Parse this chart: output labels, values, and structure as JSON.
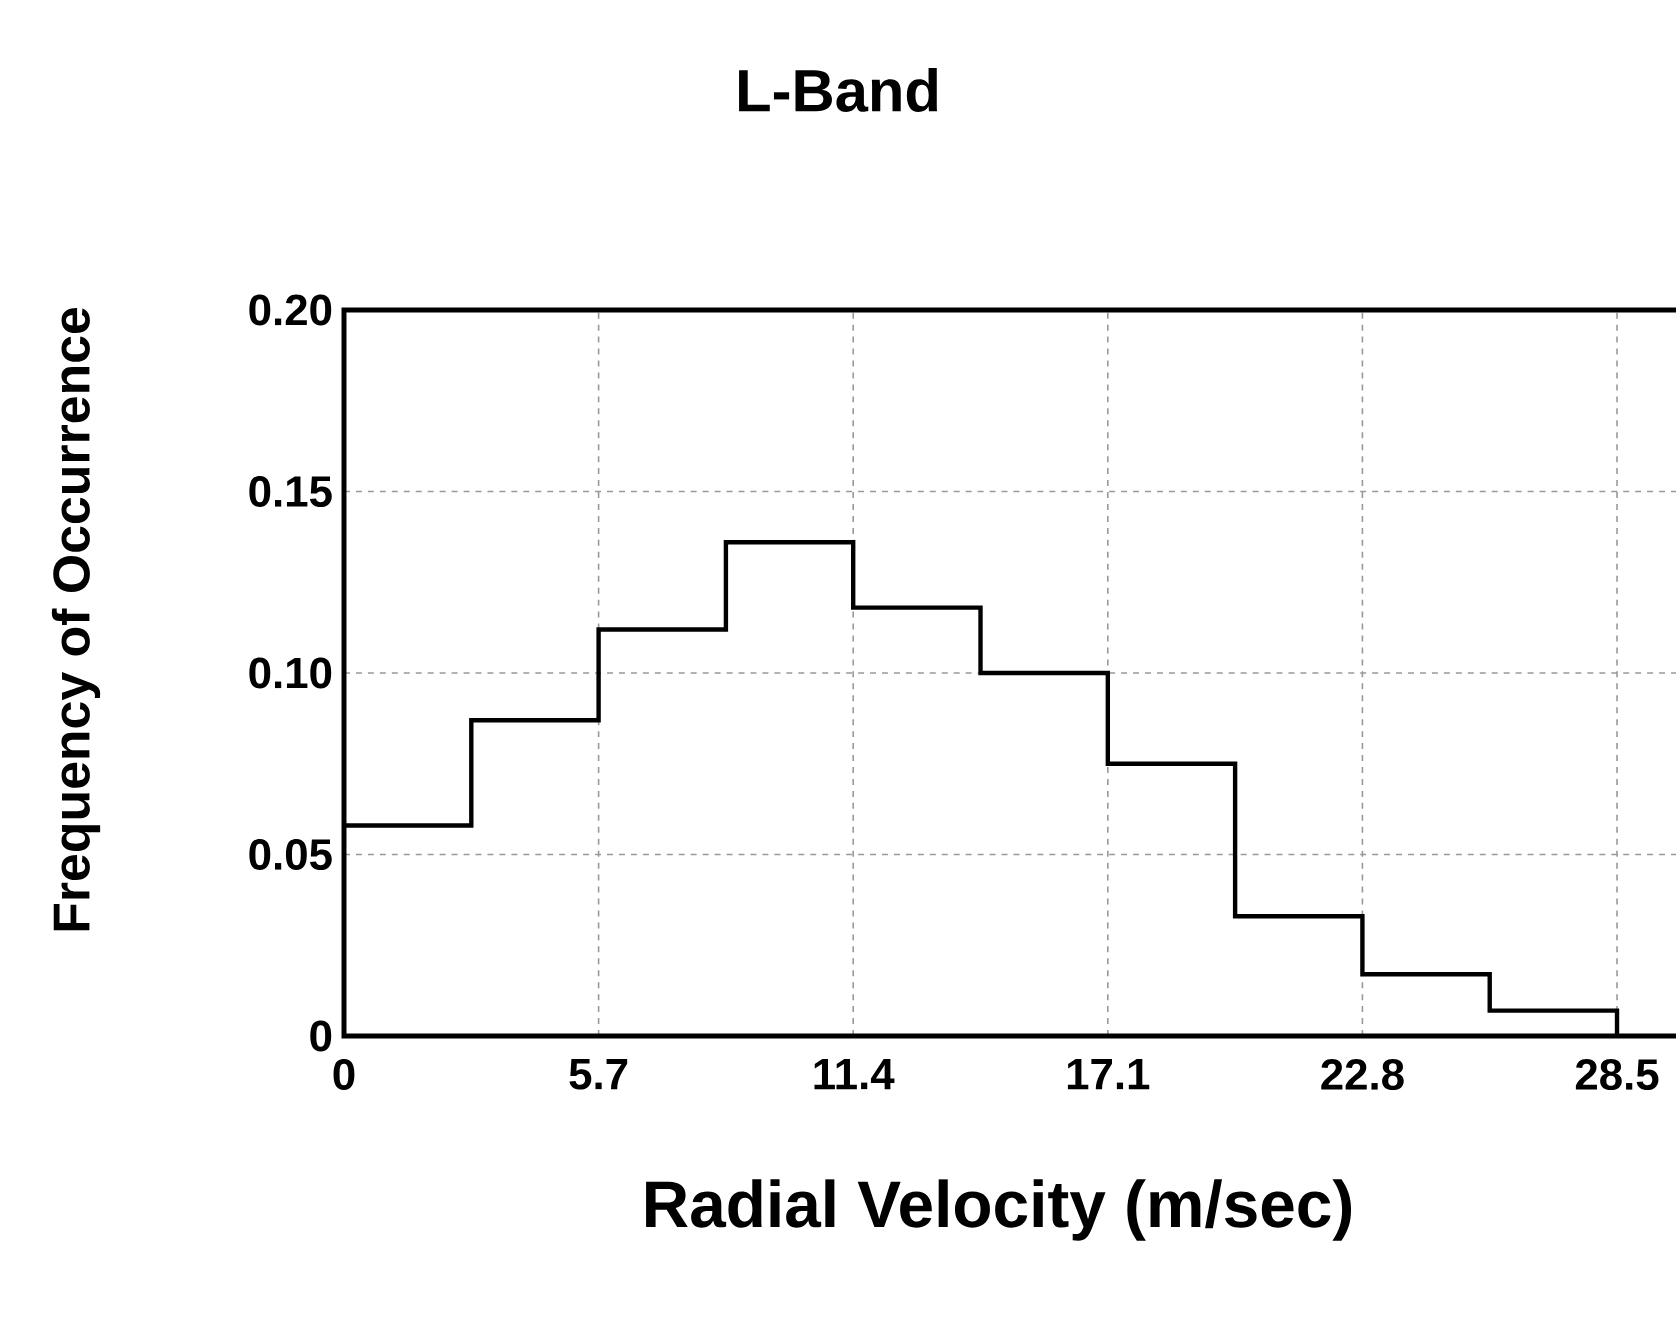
{
  "chart_data": {
    "type": "histogram",
    "title": "L-Band",
    "xlabel": "Radial Velocity (m/sec)",
    "ylabel": "Frequency of Occurrence",
    "bins": [
      0,
      2.85,
      5.7,
      8.55,
      11.4,
      14.25,
      17.1,
      19.95,
      22.8,
      25.65,
      28.5
    ],
    "values": [
      0.058,
      0.087,
      0.112,
      0.136,
      0.118,
      0.1,
      0.075,
      0.033,
      0.017,
      0.007
    ],
    "color": "#000000",
    "xlim": [
      0,
      30
    ],
    "xticks": [
      0,
      5.7,
      11.4,
      17.1,
      22.8,
      28.5
    ],
    "ylim": [
      0,
      0.2
    ],
    "yticks": [
      0,
      {
        "value": 0.05,
        "label": "0.05"
      },
      {
        "value": 0.1,
        "label": "0.10"
      },
      {
        "value": 0.15,
        "label": "0.15"
      },
      {
        "value": 0.2,
        "label": "0.20"
      }
    ],
    "grid": true
  }
}
